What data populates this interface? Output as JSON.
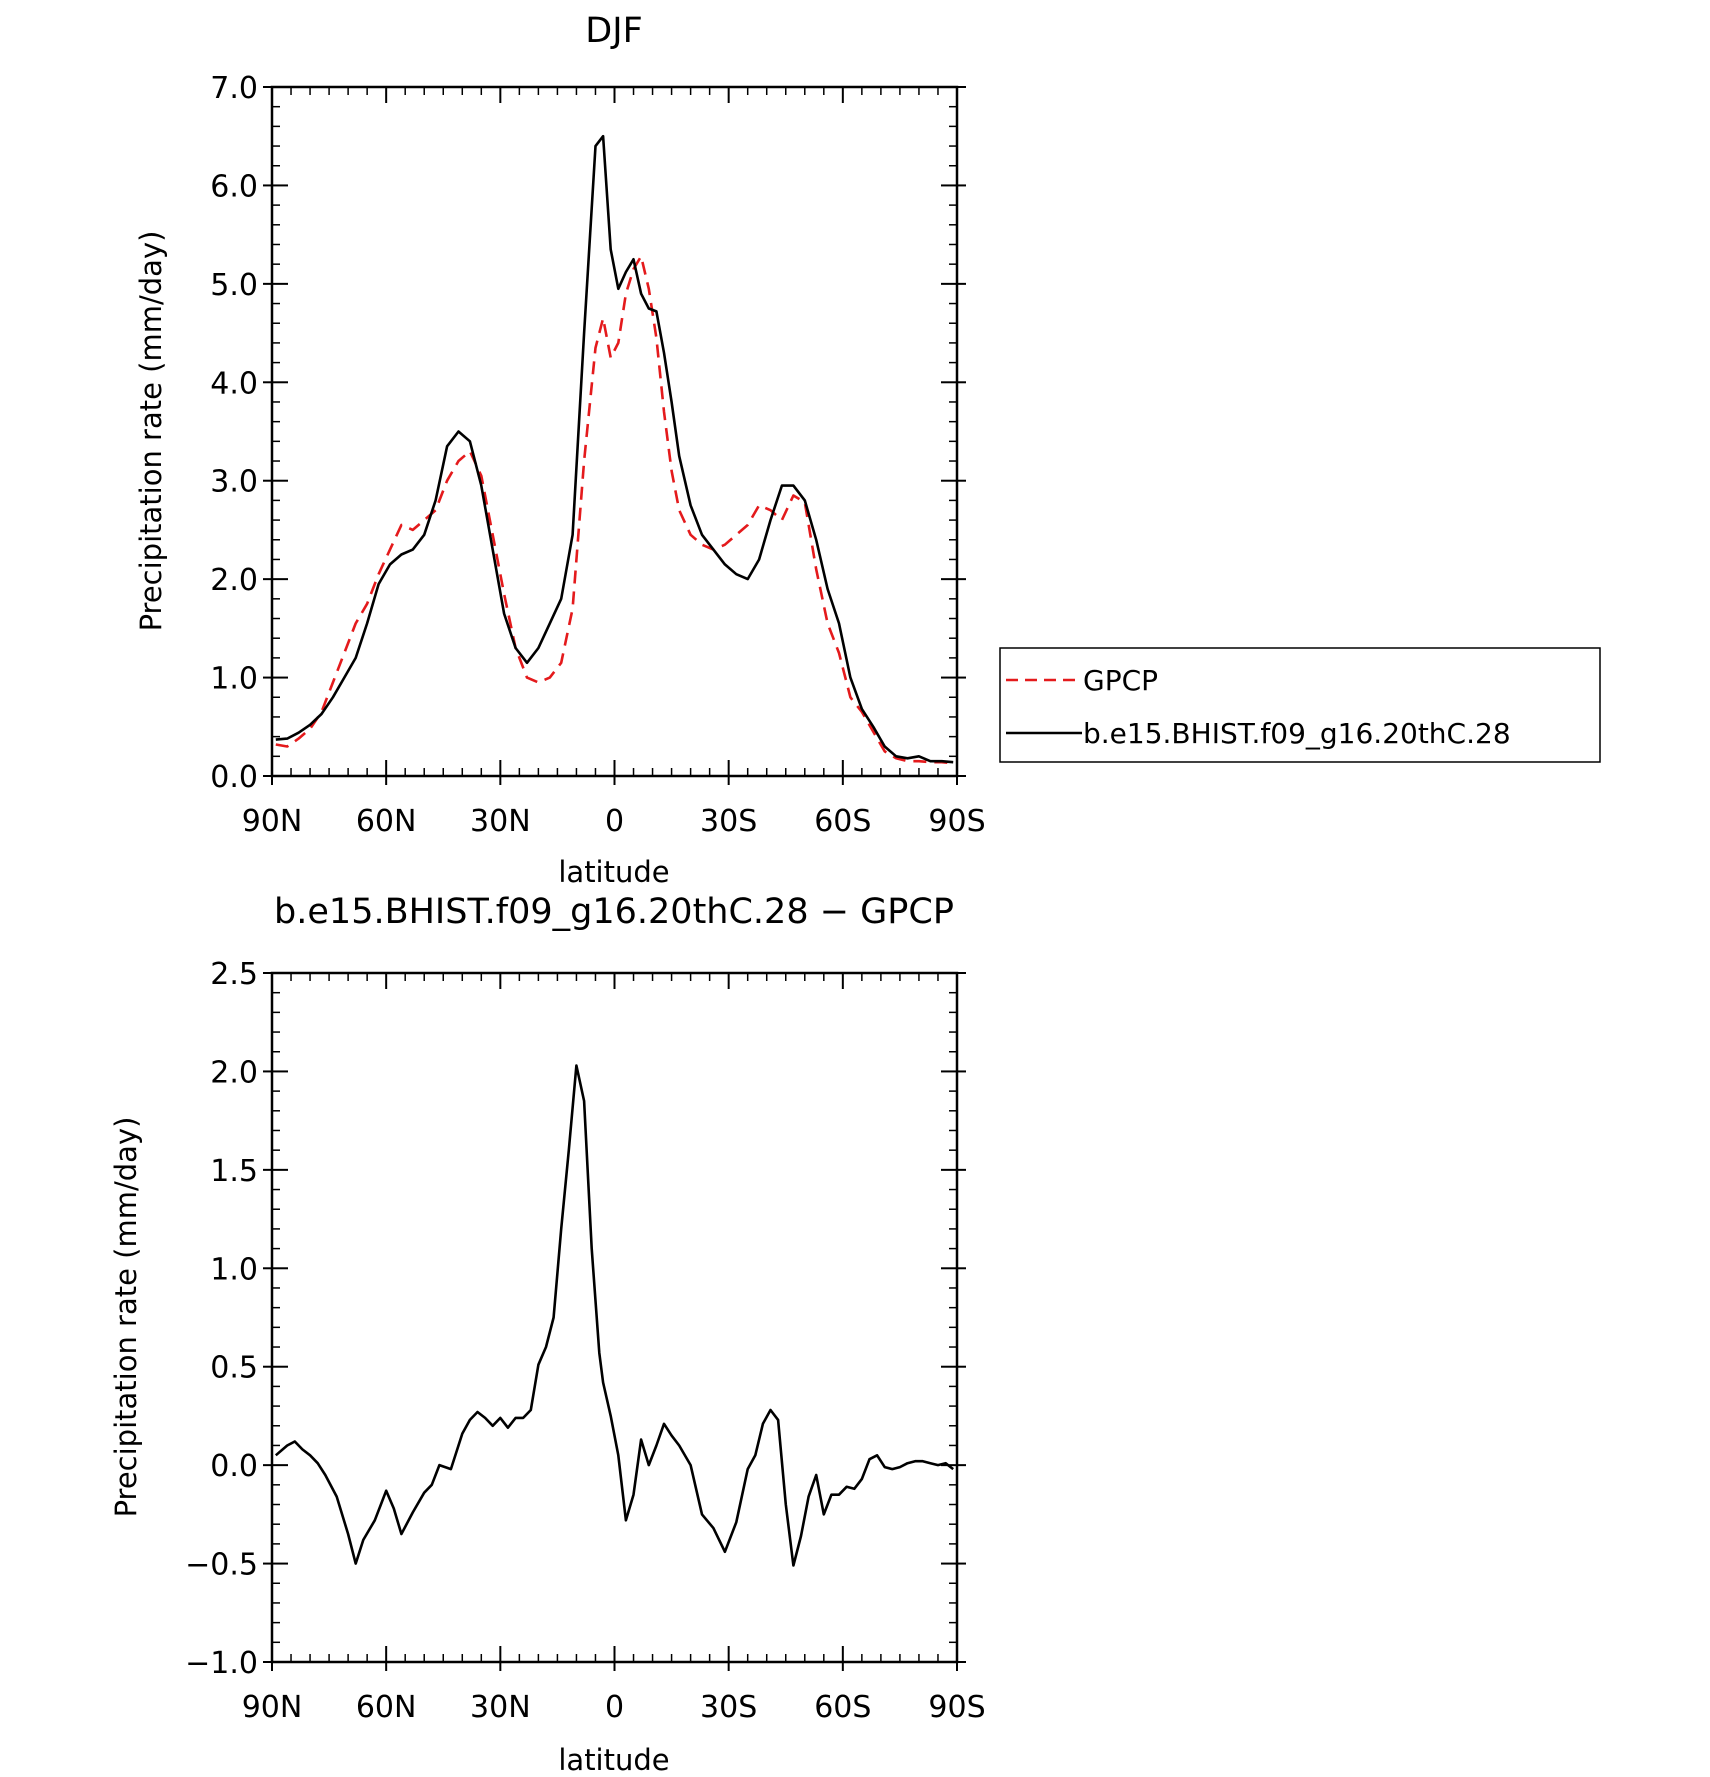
{
  "chart_data": [
    {
      "type": "line",
      "title": "DJF",
      "xlabel": "latitude",
      "ylabel": "Precipitation rate (mm/day)",
      "xlim": [
        90,
        -90
      ],
      "ylim": [
        0.0,
        7.0
      ],
      "x_tick_values": [
        90,
        60,
        30,
        0,
        -30,
        -60,
        -90
      ],
      "x_tick_labels": [
        "90N",
        "60N",
        "30N",
        "0",
        "30S",
        "60S",
        "90S"
      ],
      "y_tick_values": [
        0,
        1,
        2,
        3,
        4,
        5,
        6,
        7
      ],
      "y_tick_labels": [
        "0.0",
        "1.0",
        "2.0",
        "3.0",
        "4.0",
        "5.0",
        "6.0",
        "7.0"
      ],
      "legend_position": "right",
      "series": [
        {
          "name": "GPCP",
          "color": "#e41a1c",
          "dash": "dashed",
          "x": [
            89,
            86,
            83,
            80,
            77,
            74,
            71,
            68,
            65,
            62,
            59,
            56,
            53,
            50,
            47,
            44,
            41,
            38,
            35,
            32,
            29,
            26,
            23,
            20,
            17,
            14,
            11,
            8,
            5,
            3,
            1,
            -1,
            -3,
            -5,
            -7,
            -9,
            -11,
            -13,
            -15,
            -17,
            -20,
            -23,
            -26,
            -29,
            -32,
            -35,
            -38,
            -41,
            -44,
            -47,
            -50,
            -53,
            -56,
            -59,
            -62,
            -65,
            -68,
            -71,
            -74,
            -77,
            -80,
            -83,
            -86,
            -89
          ],
          "y": [
            0.32,
            0.3,
            0.38,
            0.48,
            0.65,
            0.95,
            1.25,
            1.55,
            1.75,
            2.05,
            2.3,
            2.55,
            2.5,
            2.6,
            2.7,
            3.0,
            3.2,
            3.3,
            3.05,
            2.45,
            1.85,
            1.3,
            1.0,
            0.95,
            1.0,
            1.15,
            1.7,
            3.2,
            4.35,
            4.65,
            4.25,
            4.4,
            4.9,
            5.15,
            5.28,
            4.95,
            4.45,
            3.7,
            3.1,
            2.7,
            2.45,
            2.35,
            2.3,
            2.35,
            2.45,
            2.55,
            2.75,
            2.7,
            2.6,
            2.85,
            2.78,
            2.1,
            1.55,
            1.25,
            0.8,
            0.65,
            0.45,
            0.25,
            0.18,
            0.15,
            0.15,
            0.14,
            0.14,
            0.13
          ]
        },
        {
          "name": "b.e15.BHIST.f09_g16.20thC.28",
          "color": "#000000",
          "dash": "solid",
          "x": [
            89,
            86,
            83,
            80,
            77,
            74,
            71,
            68,
            65,
            62,
            59,
            56,
            53,
            50,
            47,
            44,
            41,
            38,
            35,
            32,
            29,
            26,
            23,
            20,
            17,
            14,
            11,
            8,
            5,
            3,
            1,
            -1,
            -3,
            -5,
            -7,
            -9,
            -11,
            -13,
            -15,
            -17,
            -20,
            -23,
            -26,
            -29,
            -32,
            -35,
            -38,
            -41,
            -44,
            -47,
            -50,
            -53,
            -56,
            -59,
            -62,
            -65,
            -68,
            -71,
            -74,
            -77,
            -80,
            -83,
            -86,
            -89
          ],
          "y": [
            0.37,
            0.38,
            0.44,
            0.52,
            0.63,
            0.8,
            1.0,
            1.2,
            1.55,
            1.95,
            2.15,
            2.25,
            2.3,
            2.45,
            2.8,
            3.35,
            3.5,
            3.4,
            2.95,
            2.3,
            1.65,
            1.3,
            1.15,
            1.3,
            1.55,
            1.8,
            2.45,
            4.5,
            6.4,
            6.5,
            5.35,
            4.95,
            5.12,
            5.25,
            4.9,
            4.75,
            4.72,
            4.3,
            3.8,
            3.25,
            2.75,
            2.45,
            2.3,
            2.15,
            2.05,
            2.0,
            2.2,
            2.6,
            2.95,
            2.95,
            2.8,
            2.4,
            1.9,
            1.55,
            1.0,
            0.68,
            0.5,
            0.3,
            0.2,
            0.18,
            0.2,
            0.15,
            0.15,
            0.14
          ]
        }
      ]
    },
    {
      "type": "line",
      "title": "b.e15.BHIST.f09_g16.20thC.28 − GPCP",
      "xlabel": "latitude",
      "ylabel": "Precipitation rate (mm/day)",
      "xlim": [
        90,
        -90
      ],
      "ylim": [
        -1.0,
        2.5
      ],
      "x_tick_values": [
        90,
        60,
        30,
        0,
        -30,
        -60,
        -90
      ],
      "x_tick_labels": [
        "90N",
        "60N",
        "30N",
        "0",
        "30S",
        "60S",
        "90S"
      ],
      "y_tick_values": [
        -1.0,
        -0.5,
        0.0,
        0.5,
        1.0,
        1.5,
        2.0,
        2.5
      ],
      "y_tick_labels": [
        "−1.0",
        "−0.5",
        "0.0",
        "0.5",
        "1.0",
        "1.5",
        "2.0",
        "2.5"
      ],
      "series": [
        {
          "color": "#000000",
          "dash": "solid",
          "x": [
            89,
            86,
            84,
            82,
            80,
            78,
            76,
            73,
            70,
            68,
            66,
            63,
            60,
            58,
            56,
            53,
            50,
            48,
            46,
            43,
            40,
            38,
            36,
            34,
            32,
            30,
            28,
            26,
            24,
            22,
            20,
            18,
            16,
            14,
            12,
            10,
            8,
            6,
            4,
            3,
            1,
            -1,
            -3,
            -5,
            -7,
            -9,
            -11,
            -13,
            -15,
            -17,
            -20,
            -23,
            -26,
            -29,
            -32,
            -35,
            -37,
            -39,
            -41,
            -43,
            -45,
            -47,
            -49,
            -51,
            -53,
            -55,
            -57,
            -59,
            -61,
            -63,
            -65,
            -67,
            -69,
            -71,
            -73,
            -75,
            -77,
            -79,
            -81,
            -83,
            -85,
            -87,
            -89
          ],
          "y": [
            0.05,
            0.1,
            0.12,
            0.08,
            0.05,
            0.01,
            -0.05,
            -0.16,
            -0.35,
            -0.5,
            -0.38,
            -0.28,
            -0.13,
            -0.22,
            -0.35,
            -0.24,
            -0.14,
            -0.1,
            0.0,
            -0.02,
            0.16,
            0.23,
            0.27,
            0.24,
            0.2,
            0.24,
            0.19,
            0.24,
            0.24,
            0.28,
            0.51,
            0.6,
            0.75,
            1.2,
            1.6,
            2.03,
            1.85,
            1.1,
            0.57,
            0.42,
            0.25,
            0.05,
            -0.28,
            -0.15,
            0.13,
            0.0,
            0.1,
            0.21,
            0.15,
            0.1,
            0.0,
            -0.25,
            -0.32,
            -0.44,
            -0.29,
            -0.02,
            0.05,
            0.21,
            0.28,
            0.23,
            -0.2,
            -0.51,
            -0.36,
            -0.16,
            -0.05,
            -0.25,
            -0.15,
            -0.15,
            -0.11,
            -0.12,
            -0.07,
            0.03,
            0.05,
            -0.01,
            -0.02,
            -0.01,
            0.01,
            0.02,
            0.02,
            0.01,
            0.0,
            0.01,
            -0.02
          ]
        }
      ]
    }
  ]
}
